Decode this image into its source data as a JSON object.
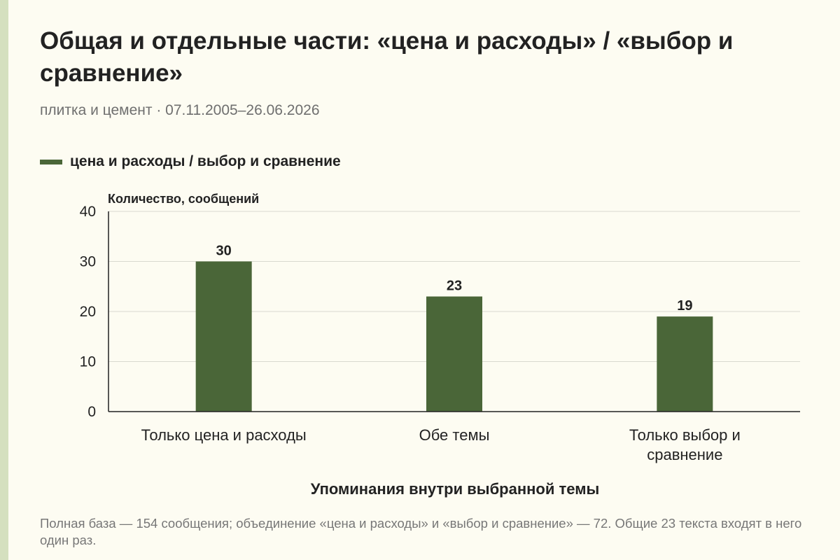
{
  "title": "Общая и отдельные части: «цена и расходы» / «выбор и сравнение»",
  "subtitle": "плитка и цемент · 07.11.2005–26.06.2026",
  "note": "Полная база — 154 сообщения; объединение «цена и расходы» и «выбор и сравнение» — 72. Общие 23 текста входят в него один раз.",
  "colors": {
    "bar": "#4a6638",
    "background": "#fdfcf2",
    "stripe": "#d5e0bf"
  },
  "chart_data": {
    "type": "bar",
    "title": "Общая и отдельные части: «цена и расходы» / «выбор и сравнение»",
    "xlabel": "Упоминания внутри выбранной темы",
    "ylabel": "Количество, сообщений",
    "categories": [
      "Только цена и расходы",
      "Обе темы",
      "Только выбор и сравнение"
    ],
    "series": [
      {
        "name": "цена и расходы / выбор и сравнение",
        "values": [
          30,
          23,
          19
        ]
      }
    ],
    "ylim": [
      0,
      40
    ],
    "yticks": [
      0,
      10,
      20,
      30,
      40
    ],
    "grid": true,
    "legend": "top-left"
  }
}
